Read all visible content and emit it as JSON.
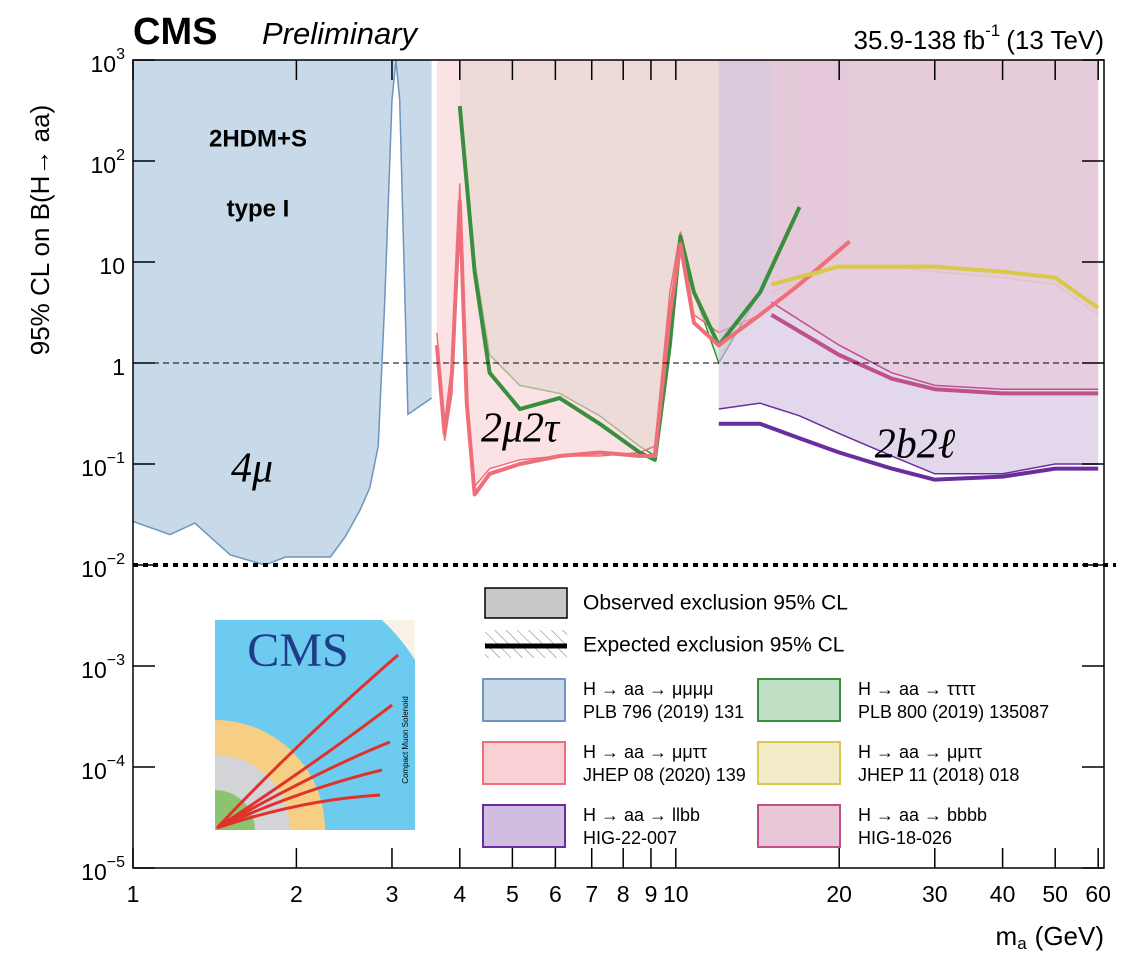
{
  "chart_data": {
    "type": "exclusion",
    "title": "CMS",
    "subtitle": "Preliminary",
    "lumi": "35.9-138 fb",
    "lumi_sup": "-1",
    "energy": "(13 TeV)",
    "y_label": "95% CL on B(H→ aa)",
    "x_label": {
      "text": "m",
      "sub": "a",
      "unit": "(GeV)"
    },
    "log_x": true,
    "log_y": true,
    "xlim": [
      1,
      61.5
    ],
    "xticks": [
      1,
      2,
      3,
      4,
      5,
      6,
      7,
      8,
      9,
      10,
      20,
      30,
      40,
      50,
      60
    ],
    "ylim": [
      1e-05,
      1000
    ],
    "yticks": [
      {
        "value": 1e-05,
        "label": "10",
        "sup": "−5"
      },
      {
        "value": 0.0001,
        "label": "10",
        "sup": "−4"
      },
      {
        "value": 0.001,
        "label": "10",
        "sup": "−3"
      },
      {
        "value": 0.01,
        "label": "10",
        "sup": "−2"
      },
      {
        "value": 0.1,
        "label": "10",
        "sup": "−1"
      },
      1,
      10,
      {
        "value": 100,
        "label": "10",
        "sup": "2"
      },
      {
        "value": 1000,
        "label": "10",
        "sup": "3"
      }
    ],
    "reference_line": 1,
    "boundary_line": 0.01,
    "annotations": [
      "2HDM+S",
      "type I",
      "4μ",
      "2μ2τ",
      "2b2ℓ"
    ],
    "observed_label": "Observed exclusion 95% CL",
    "expected_label": "Expected exclusion 95% CL",
    "series": [
      {
        "name": "H → aa → μμμμ",
        "reference": "PLB 796 (2019) 131",
        "color": "#6f94bd",
        "fill": "#c8d9e9",
        "x": [
          1,
          1.17,
          1.3,
          1.51,
          1.75,
          1.91,
          2.31,
          2.46,
          2.62,
          2.73,
          2.83,
          2.91,
          3.0,
          3.05,
          3.1,
          3.17,
          3.21,
          3.55
        ],
        "observed": [
          0.027,
          0.02,
          0.026,
          0.0126,
          0.01,
          0.012,
          0.012,
          0.019,
          0.035,
          0.058,
          0.15,
          4.2,
          400,
          1000,
          400,
          4.2,
          0.31,
          0.45
        ]
      },
      {
        "name": "H → aa → ττττ",
        "reference": "PLB 800 (2019) 135087",
        "color": "#3a8f3e",
        "fill": "#c0dfc2",
        "x": [
          4.0,
          4.26,
          4.54,
          5.16,
          6.11,
          7.24,
          8.58,
          9.15,
          9.75,
          10.2,
          10.8,
          12.0,
          14.3,
          16.9
        ],
        "observed": [
          300,
          10,
          1.2,
          0.6,
          0.5,
          0.3,
          0.15,
          0.12,
          2,
          15,
          5,
          1,
          5,
          30
        ],
        "expected": [
          350,
          8,
          0.8,
          0.35,
          0.45,
          0.25,
          0.13,
          0.11,
          1.5,
          18,
          5,
          1.5,
          5,
          35
        ]
      },
      {
        "name": "H → aa → μμττ",
        "reference": "JHEP 08 (2020) 139",
        "color": "#ee6f79",
        "fill": "#f9d0d4",
        "x": [
          3.63,
          3.75,
          3.87,
          4.0,
          4.12,
          4.26,
          4.54,
          5.16,
          6.11,
          7.24,
          8.58,
          9.15,
          9.75,
          10.2,
          10.8,
          12.0,
          14.3,
          16.9,
          20.9
        ],
        "observed": [
          2.0,
          0.17,
          0.5,
          60,
          0.3,
          0.06,
          0.09,
          0.11,
          0.12,
          0.12,
          0.13,
          0.15,
          5,
          20,
          3,
          2,
          3,
          6,
          15
        ],
        "expected": [
          1.5,
          0.2,
          0.8,
          40,
          0.4,
          0.05,
          0.08,
          0.1,
          0.12,
          0.13,
          0.12,
          0.12,
          3,
          15,
          2.5,
          1.5,
          3,
          6,
          16
        ]
      },
      {
        "name": "H → aa → μμττ",
        "reference": "JHEP 11 (2018) 018",
        "color": "#d9c84a",
        "fill": "#f2ecc8",
        "x": [
          15,
          20,
          25,
          30,
          40,
          50,
          60
        ],
        "observed": [
          5,
          9,
          9,
          8,
          7,
          6,
          3
        ],
        "expected": [
          6,
          9,
          9,
          9,
          8,
          7,
          3.5
        ]
      },
      {
        "name": "H → aa → llbb",
        "reference": "HIG-22-007",
        "color": "#6a2da0",
        "fill": "#d0bde0",
        "x": [
          12,
          14.3,
          16.9,
          20,
          25,
          30,
          40,
          50,
          60
        ],
        "observed": [
          0.35,
          0.4,
          0.3,
          0.2,
          0.12,
          0.08,
          0.08,
          0.1,
          0.1
        ],
        "expected": [
          0.25,
          0.25,
          0.18,
          0.13,
          0.09,
          0.07,
          0.075,
          0.09,
          0.09
        ]
      },
      {
        "name": "H → aa → bbbb",
        "reference": "HIG-18-026",
        "color": "#c0508a",
        "fill": "#e9c6d8",
        "x": [
          15,
          20,
          25,
          30,
          40,
          50,
          60
        ],
        "observed": [
          4,
          1.5,
          0.8,
          0.6,
          0.55,
          0.55,
          0.55
        ],
        "expected": [
          3,
          1.2,
          0.7,
          0.55,
          0.5,
          0.5,
          0.5
        ]
      }
    ]
  },
  "logo": {
    "title": "CMS",
    "subtitle": "Compact Muon Solenoid"
  }
}
